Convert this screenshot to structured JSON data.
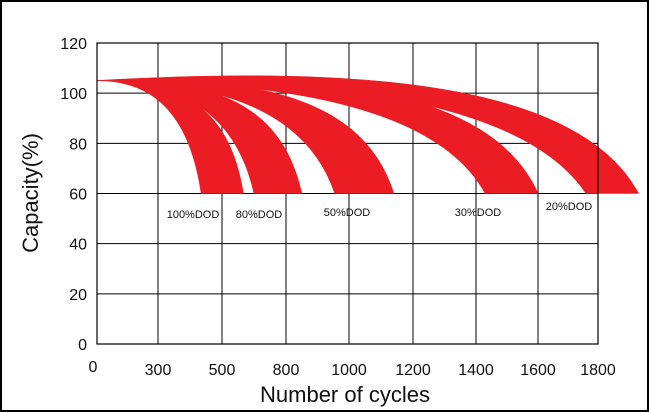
{
  "chart_data": {
    "type": "area",
    "title": "",
    "xlabel": "Number of cycles",
    "ylabel": "Capacity(%)",
    "xlim": [
      0,
      1800
    ],
    "ylim": [
      0,
      120
    ],
    "x_ticks": [
      {
        "value": 0,
        "label": "0"
      },
      {
        "value": 300,
        "label": "300"
      },
      {
        "value": 500,
        "label": "500"
      },
      {
        "value": 800,
        "label": "800"
      },
      {
        "value": 1000,
        "label": "1000"
      },
      {
        "value": 1200,
        "label": "1200"
      },
      {
        "value": 1400,
        "label": "1400"
      },
      {
        "value": 1600,
        "label": "1600"
      },
      {
        "value": 1800,
        "label": "1800"
      }
    ],
    "y_ticks": [
      {
        "value": 0,
        "label": "0"
      },
      {
        "value": 20,
        "label": "20"
      },
      {
        "value": 40,
        "label": "40"
      },
      {
        "value": 60,
        "label": "60"
      },
      {
        "value": 80,
        "label": "80"
      },
      {
        "value": 100,
        "label": "100"
      },
      {
        "value": 120,
        "label": "120"
      }
    ],
    "grid": true,
    "band_color": "#ec1c24",
    "band_start": {
      "x": 0,
      "y": 105
    },
    "series": [
      {
        "name": "100%DOD",
        "upper_end_cycles": 600,
        "lower_end_cycles": 435,
        "upper_peak_capacity": 105,
        "lower_peak_capacity": 105,
        "end_capacity": 60
      },
      {
        "name": "80%DOD",
        "upper_end_cycles": 850,
        "lower_end_cycles": 650,
        "upper_peak_capacity": 106,
        "lower_peak_capacity": 105,
        "end_capacity": 60
      },
      {
        "name": "50%DOD",
        "upper_end_cycles": 1140,
        "lower_end_cycles": 955,
        "upper_peak_capacity": 107,
        "lower_peak_capacity": 105,
        "end_capacity": 60
      },
      {
        "name": "30%DOD",
        "upper_end_cycles": 1600,
        "lower_end_cycles": 1430,
        "upper_peak_capacity": 109,
        "lower_peak_capacity": 105,
        "end_capacity": 60
      },
      {
        "name": "20%DOD",
        "upper_end_cycles": 1935,
        "lower_end_cycles": 1760,
        "upper_peak_capacity": 110.5,
        "lower_peak_capacity": 107,
        "end_capacity": 60
      }
    ],
    "colors": {
      "band": "#ec1c24",
      "grid": "#000000",
      "text": "#111111"
    }
  }
}
